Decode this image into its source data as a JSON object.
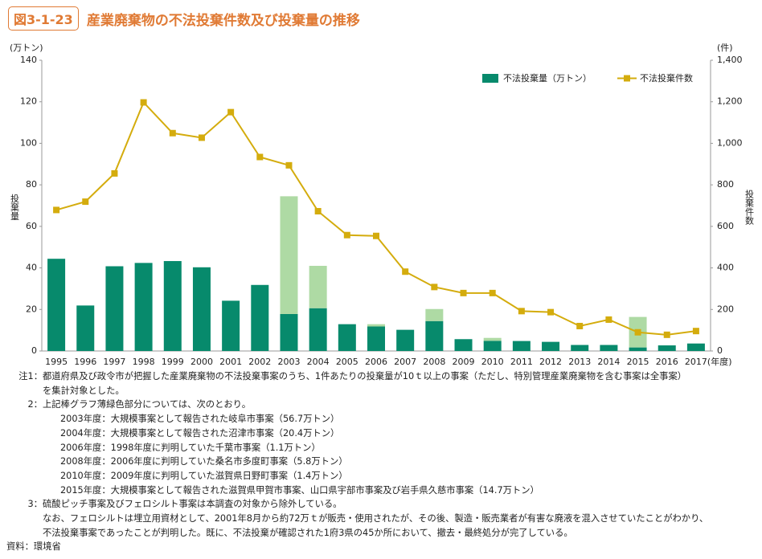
{
  "header": {
    "badge": "図3-1-23",
    "title": "産業廃棄物の不法投棄件数及び投棄量の推移"
  },
  "chart_data": {
    "type": "bar_line",
    "categories": [
      "1995",
      "1996",
      "1997",
      "1998",
      "1999",
      "2000",
      "2001",
      "2002",
      "2003",
      "2004",
      "2005",
      "2006",
      "2007",
      "2008",
      "2009",
      "2010",
      "2011",
      "2012",
      "2013",
      "2014",
      "2015",
      "2016",
      "2017"
    ],
    "x_unit": "(年度)",
    "y_unit": "(万トン)",
    "y2_unit": "(件)",
    "y_label": "投棄量",
    "y2_label": "投棄件数",
    "ylim": [
      0,
      140
    ],
    "yticks": [
      0,
      20,
      40,
      60,
      80,
      100,
      120,
      140
    ],
    "y2lim": [
      0,
      1400
    ],
    "y2ticks": [
      0,
      200,
      400,
      600,
      800,
      {
        "value": 1000,
        "label": "1,000"
      },
      {
        "value": 1200,
        "label": "1,200"
      },
      {
        "value": 1400,
        "label": "1,400"
      }
    ],
    "series": [
      {
        "name": "不法投棄量（万トン）",
        "kind": "bar",
        "color": "#078a6c",
        "values": [
          44.4,
          21.9,
          40.8,
          42.4,
          43.3,
          40.3,
          24.2,
          31.8,
          17.8,
          20.6,
          12.9,
          11.8,
          10.2,
          14.4,
          5.7,
          4.9,
          4.8,
          4.4,
          2.9,
          2.9,
          1.7,
          2.7,
          3.6
        ]
      },
      {
        "kind": "bar",
        "color": "#aedaa4",
        "values": [
          null,
          null,
          null,
          null,
          null,
          null,
          null,
          null,
          56.7,
          20.4,
          null,
          1.1,
          null,
          5.8,
          null,
          1.4,
          null,
          null,
          null,
          null,
          14.7,
          null,
          null
        ]
      },
      {
        "name": "不法投棄件数",
        "kind": "line",
        "axis": "y2",
        "color": "#d4ac0d",
        "values": [
          679,
          719,
          855,
          1197,
          1049,
          1027,
          1150,
          934,
          894,
          673,
          558,
          554,
          382,
          308,
          279,
          279,
          192,
          187,
          120,
          151,
          90,
          78,
          96
        ]
      }
    ]
  },
  "notes": [
    {
      "marker": "注1：",
      "lines": [
        "都道府県及び政令市が把握した産業廃棄物の不法投棄事案のうち、1件あたりの投棄量が10ｔ以上の事案（ただし、特別管理産業廃棄物を含む事案は全事案）",
        "を集計対象とした。"
      ]
    },
    {
      "marker": "2：",
      "lines": [
        "上記棒グラフ薄緑色部分については、次のとおり。"
      ],
      "items": [
        "2003年度：大規模事案として報告された岐阜市事案（56.7万トン）",
        "2004年度：大規模事案として報告された沼津市事案（20.4万トン）",
        "2006年度：1998年度に判明していた千葉市事案（1.1万トン）",
        "2008年度：2006年度に判明していた桑名市多度町事案（5.8万トン）",
        "2010年度：2009年度に判明していた滋賀県日野町事案（1.4万トン）",
        "2015年度：大規模事案として報告された滋賀県甲賀市事案、山口県宇部市事案及び岩手県久慈市事案（14.7万トン）"
      ]
    },
    {
      "marker": "3：",
      "lines": [
        "硫酸ピッチ事案及びフェロシルト事案は本調査の対象から除外している。",
        "なお、フェロシルトは埋立用資材として、2001年8月から約72万ｔが販売・使用されたが、その後、製造・販売業者が有害な廃液を混入させていたことがわかり、",
        "不法投棄事案であったことが判明した。既に、不法投棄が確認された1府3県の45か所において、撤去・最終処分が完了している。"
      ]
    }
  ],
  "source": "資料：環境省"
}
